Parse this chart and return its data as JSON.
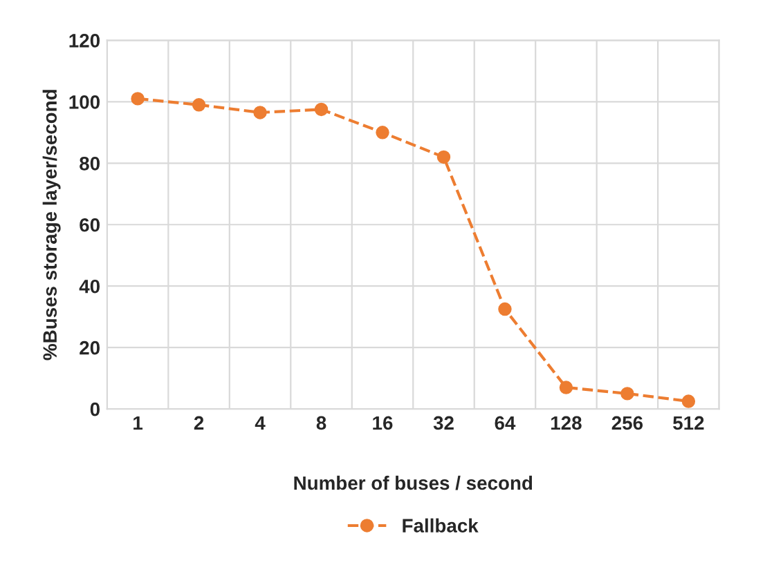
{
  "chart_data": {
    "type": "line",
    "xlabel": "Number of buses / second",
    "ylabel": "%Buses storage layer/second",
    "categories": [
      "1",
      "2",
      "4",
      "8",
      "16",
      "32",
      "64",
      "128",
      "256",
      "512"
    ],
    "series": [
      {
        "name": "Fallback",
        "color": "#ed7d31",
        "values": [
          101,
          99,
          96.5,
          97.5,
          90,
          82,
          32.5,
          7,
          5,
          2.5
        ]
      }
    ],
    "ylim": [
      0,
      120
    ],
    "yticks": [
      0,
      20,
      40,
      60,
      80,
      100,
      120
    ],
    "grid": true,
    "legend": "bottom",
    "marker": "circle",
    "line_style": "dashed"
  }
}
